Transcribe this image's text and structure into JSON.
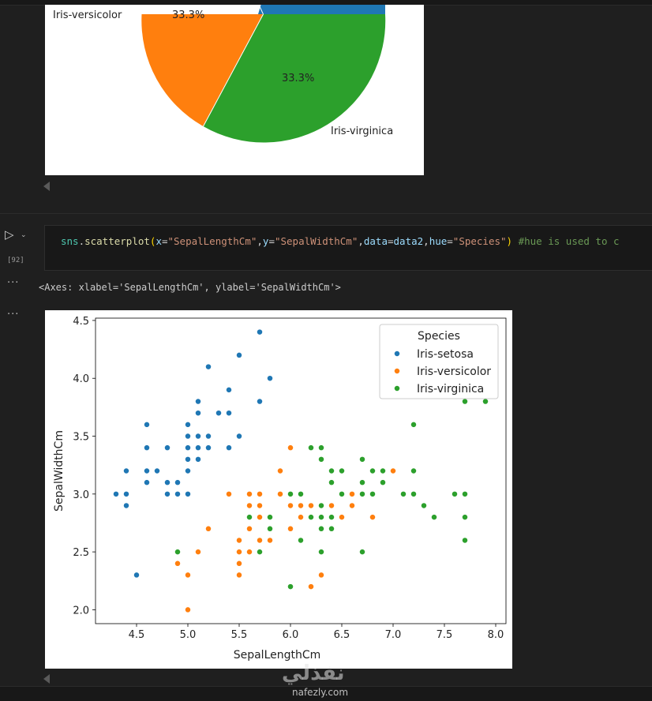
{
  "colors": {
    "setosa": "#1f77b4",
    "versicolor": "#ff7f0e",
    "virginica": "#2ca02c",
    "background": "#1f1f1f"
  },
  "pie_chart": {
    "labels": {
      "versicolor": "Iris-versicolor",
      "virginica": "Iris-virginica"
    },
    "pct": {
      "versicolor": "33.3%",
      "virginica": "33.3%"
    }
  },
  "cell": {
    "run_icon": "play-icon",
    "execution_count": "[92]",
    "code": {
      "fn": "sns",
      "dot": ".",
      "method": "scatterplot",
      "open": "(",
      "x_kw": "x",
      "eq": "=",
      "x_val": "\"SepalLengthCm\"",
      "comma": ",",
      "y_kw": "y",
      "y_val": "\"SepalWidthCm\"",
      "data_kw": "data",
      "data_val": "data2",
      "hue_kw": "hue",
      "hue_val": "\"Species\"",
      "close": ")",
      "comment": " #hue is used to c"
    },
    "output_text": "<Axes: xlabel='SepalLengthCm', ylabel='SepalWidthCm'>",
    "more_label": "···"
  },
  "chart_data": {
    "type": "scatter",
    "xlabel": "SepalLengthCm",
    "ylabel": "SepalWidthCm",
    "xlim": [
      4.1,
      8.1
    ],
    "ylim": [
      1.88,
      4.52
    ],
    "xticks": [
      "4.5",
      "5.0",
      "5.5",
      "6.0",
      "6.5",
      "7.0",
      "7.5",
      "8.0"
    ],
    "yticks": [
      "2.0",
      "2.5",
      "3.0",
      "3.5",
      "4.0",
      "4.5"
    ],
    "grid": false,
    "legend_position": "top-right",
    "legend_title": "Species",
    "series": [
      {
        "name": "Iris-setosa",
        "color": "#1f77b4",
        "points": [
          [
            4.3,
            3.0
          ],
          [
            4.4,
            3.2
          ],
          [
            4.4,
            3.0
          ],
          [
            4.4,
            2.9
          ],
          [
            4.5,
            2.3
          ],
          [
            4.6,
            3.6
          ],
          [
            4.6,
            3.4
          ],
          [
            4.6,
            3.2
          ],
          [
            4.6,
            3.1
          ],
          [
            4.7,
            3.2
          ],
          [
            4.8,
            3.4
          ],
          [
            4.8,
            3.1
          ],
          [
            4.8,
            3.0
          ],
          [
            4.9,
            3.1
          ],
          [
            4.9,
            3.0
          ],
          [
            5.0,
            3.6
          ],
          [
            5.0,
            3.5
          ],
          [
            5.0,
            3.4
          ],
          [
            5.0,
            3.3
          ],
          [
            5.0,
            3.2
          ],
          [
            5.0,
            3.0
          ],
          [
            5.1,
            3.8
          ],
          [
            5.1,
            3.7
          ],
          [
            5.1,
            3.5
          ],
          [
            5.1,
            3.4
          ],
          [
            5.1,
            3.3
          ],
          [
            5.2,
            4.1
          ],
          [
            5.2,
            3.5
          ],
          [
            5.2,
            3.4
          ],
          [
            5.3,
            3.7
          ],
          [
            5.4,
            3.9
          ],
          [
            5.4,
            3.7
          ],
          [
            5.4,
            3.4
          ],
          [
            5.5,
            4.2
          ],
          [
            5.5,
            3.5
          ],
          [
            5.7,
            4.4
          ],
          [
            5.7,
            3.8
          ],
          [
            5.8,
            4.0
          ]
        ]
      },
      {
        "name": "Iris-versicolor",
        "color": "#ff7f0e",
        "points": [
          [
            4.9,
            2.4
          ],
          [
            5.0,
            2.3
          ],
          [
            5.0,
            2.0
          ],
          [
            5.1,
            2.5
          ],
          [
            5.2,
            2.7
          ],
          [
            5.4,
            3.0
          ],
          [
            5.5,
            2.6
          ],
          [
            5.5,
            2.5
          ],
          [
            5.5,
            2.4
          ],
          [
            5.5,
            2.3
          ],
          [
            5.6,
            3.0
          ],
          [
            5.6,
            2.9
          ],
          [
            5.6,
            2.7
          ],
          [
            5.6,
            2.5
          ],
          [
            5.7,
            3.0
          ],
          [
            5.7,
            2.9
          ],
          [
            5.7,
            2.8
          ],
          [
            5.7,
            2.6
          ],
          [
            5.8,
            2.7
          ],
          [
            5.8,
            2.6
          ],
          [
            5.9,
            3.2
          ],
          [
            5.9,
            3.0
          ],
          [
            6.0,
            3.4
          ],
          [
            6.0,
            2.9
          ],
          [
            6.0,
            2.7
          ],
          [
            6.0,
            2.2
          ],
          [
            6.1,
            3.0
          ],
          [
            6.1,
            2.9
          ],
          [
            6.1,
            2.8
          ],
          [
            6.2,
            2.9
          ],
          [
            6.2,
            2.2
          ],
          [
            6.3,
            2.5
          ],
          [
            6.3,
            2.3
          ],
          [
            6.4,
            3.2
          ],
          [
            6.4,
            2.9
          ],
          [
            6.5,
            2.8
          ],
          [
            6.6,
            3.0
          ],
          [
            6.6,
            2.9
          ],
          [
            6.7,
            3.1
          ],
          [
            6.7,
            3.0
          ],
          [
            6.8,
            2.8
          ],
          [
            6.9,
            3.1
          ],
          [
            7.0,
            3.2
          ]
        ]
      },
      {
        "name": "Iris-virginica",
        "color": "#2ca02c",
        "points": [
          [
            4.9,
            2.5
          ],
          [
            5.6,
            2.8
          ],
          [
            5.7,
            2.5
          ],
          [
            5.8,
            2.8
          ],
          [
            5.8,
            2.7
          ],
          [
            6.0,
            3.0
          ],
          [
            6.0,
            2.2
          ],
          [
            6.1,
            3.0
          ],
          [
            6.1,
            2.6
          ],
          [
            6.2,
            3.4
          ],
          [
            6.2,
            2.8
          ],
          [
            6.3,
            3.4
          ],
          [
            6.3,
            3.3
          ],
          [
            6.3,
            2.9
          ],
          [
            6.3,
            2.8
          ],
          [
            6.3,
            2.7
          ],
          [
            6.3,
            2.5
          ],
          [
            6.4,
            3.2
          ],
          [
            6.4,
            3.1
          ],
          [
            6.4,
            2.8
          ],
          [
            6.4,
            2.7
          ],
          [
            6.5,
            3.2
          ],
          [
            6.5,
            3.0
          ],
          [
            6.7,
            3.3
          ],
          [
            6.7,
            3.1
          ],
          [
            6.7,
            3.0
          ],
          [
            6.7,
            2.5
          ],
          [
            6.8,
            3.2
          ],
          [
            6.8,
            3.0
          ],
          [
            6.9,
            3.2
          ],
          [
            6.9,
            3.1
          ],
          [
            7.1,
            3.0
          ],
          [
            7.2,
            3.6
          ],
          [
            7.2,
            3.2
          ],
          [
            7.2,
            3.0
          ],
          [
            7.3,
            2.9
          ],
          [
            7.4,
            2.8
          ],
          [
            7.6,
            3.0
          ],
          [
            7.7,
            3.8
          ],
          [
            7.7,
            3.0
          ],
          [
            7.7,
            2.8
          ],
          [
            7.7,
            2.6
          ],
          [
            7.9,
            3.8
          ]
        ]
      }
    ]
  },
  "watermark": {
    "arabic": "نفذلي",
    "url": "nafezly.com"
  }
}
